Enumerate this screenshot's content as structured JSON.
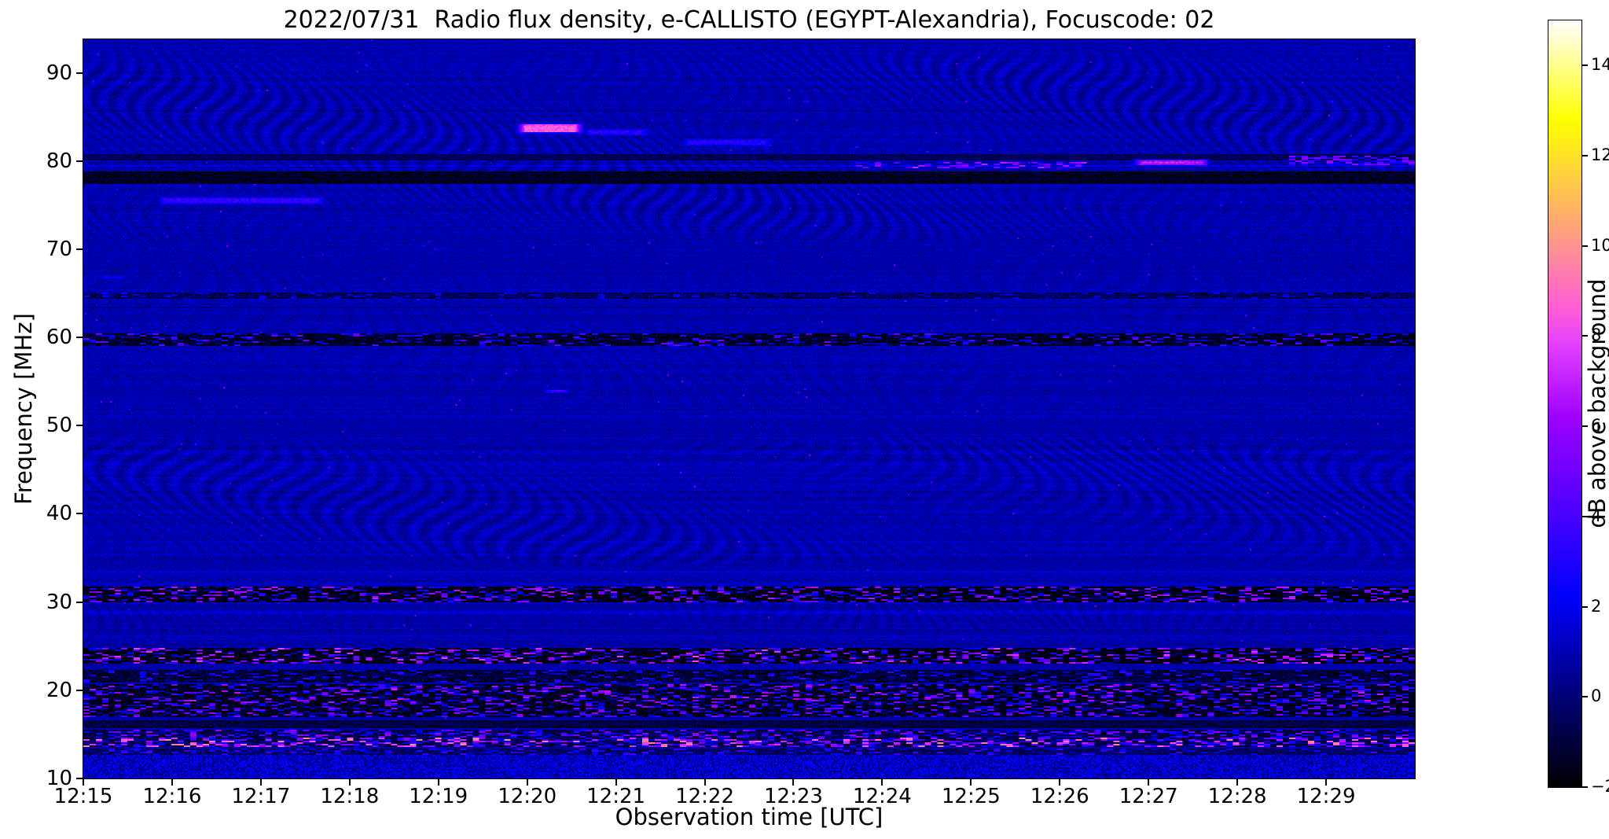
{
  "title": "2022/07/31  Radio flux density, e-CALLISTO (EGYPT-Alexandria), Focuscode: 02",
  "x_axis": {
    "label": "Observation time [UTC]",
    "ticks": [
      "12:15",
      "12:16",
      "12:17",
      "12:18",
      "12:19",
      "12:20",
      "12:21",
      "12:22",
      "12:23",
      "12:24",
      "12:25",
      "12:26",
      "12:27",
      "12:28",
      "12:29"
    ]
  },
  "y_axis": {
    "label": "Frequency [MHz]",
    "ticks": [
      "90",
      "80",
      "70",
      "60",
      "50",
      "40",
      "30",
      "20",
      "10"
    ]
  },
  "colorbar": {
    "label": "dB above background",
    "ticks": [
      "−2",
      "0",
      "2",
      "4",
      "6",
      "8",
      "10",
      "12",
      "14"
    ],
    "tick_values": [
      -2,
      0,
      2,
      4,
      6,
      8,
      10,
      12,
      14
    ],
    "min_db": -2,
    "max_db": 15
  },
  "chart_data": {
    "type": "heatmap",
    "title": "2022/07/31  Radio flux density, e-CALLISTO (EGYPT-Alexandria), Focuscode: 02",
    "xlabel": "Observation time [UTC]",
    "ylabel": "Frequency [MHz]",
    "x_start_utc": "12:15",
    "x_end_utc": "12:30",
    "x_minutes": 15,
    "x_tick_minutes": [
      0,
      1,
      2,
      3,
      4,
      5,
      6,
      7,
      8,
      9,
      10,
      11,
      12,
      13,
      14
    ],
    "freq_min_mhz": 10,
    "freq_max_mhz": 93.8,
    "y_tick_values_mhz": [
      90,
      80,
      70,
      60,
      50,
      40,
      30,
      20,
      10
    ],
    "db_min": -2,
    "db_max": 15,
    "colorbar_tick_values_db": [
      -2,
      0,
      2,
      4,
      6,
      8,
      10,
      12,
      14
    ],
    "background_db": 0.9,
    "colormap": "gnuplot2 (black-blue-magenta-yellow-white)",
    "grid": false,
    "ripple_zones": [
      {
        "f0": 70,
        "f1": 93.8,
        "amp": 0.55,
        "kx": 0.6,
        "warp": 9,
        "wx": 0.02,
        "kf": 1.5
      },
      {
        "f0": 33,
        "f1": 50,
        "amp": 0.5,
        "kx": 0.5,
        "warp": 11,
        "wx": 0.016,
        "kf": 1.3
      },
      {
        "f0": 25,
        "f1": 33,
        "amp": 0.3,
        "kx": 0.7,
        "warp": 7,
        "wx": 0.025,
        "kf": 1.7
      },
      {
        "f0": 50,
        "f1": 70,
        "amp": 0.15,
        "kx": 0.45,
        "warp": 8,
        "wx": 0.02,
        "kf": 1.2
      }
    ],
    "features": [
      {
        "kind": "dark-band",
        "name": "rfi-absorption-line-78MHz",
        "f": [
          77.5,
          79.0
        ],
        "t": [
          0,
          15
        ],
        "db": -1.4,
        "jitter": 1.0
      },
      {
        "kind": "dark-band",
        "name": "rfi-absorption-line-80MHz",
        "f": [
          80.1,
          80.8
        ],
        "t": [
          0,
          15
        ],
        "db": -0.5,
        "jitter": 0.8
      },
      {
        "kind": "bright-streak",
        "name": "emission-84MHz-1220",
        "f": [
          83.2,
          84.4
        ],
        "t": [
          4.85,
          5.65
        ],
        "db": 8.5
      },
      {
        "kind": "bright-streak",
        "name": "emission-83MHz-1220-tail",
        "f": [
          82.9,
          83.8
        ],
        "t": [
          5.6,
          6.4
        ],
        "db": 3.2
      },
      {
        "kind": "bright-streak",
        "name": "streak-75MHz-1216",
        "f": [
          75.1,
          76.1
        ],
        "t": [
          0.8,
          2.75
        ],
        "db": 3.4
      },
      {
        "kind": "bright-streak",
        "name": "patch-82MHz-1222",
        "f": [
          81.7,
          82.7
        ],
        "t": [
          6.7,
          7.8
        ],
        "db": 3.0
      },
      {
        "kind": "speckle-streak",
        "name": "dashes-79MHz-1224",
        "f": [
          79.2,
          80.0
        ],
        "t": [
          8.7,
          11.3
        ],
        "p": 0.5,
        "db": [
          2,
          7
        ]
      },
      {
        "kind": "bright-streak",
        "name": "dash-80MHz-1227",
        "f": [
          79.5,
          80.3
        ],
        "t": [
          11.8,
          12.7
        ],
        "db": 7.0
      },
      {
        "kind": "speckle-streak",
        "name": "dashes-80MHz-1228",
        "f": [
          79.7,
          80.7
        ],
        "t": [
          13.5,
          15
        ],
        "p": 0.55,
        "db": [
          2,
          6
        ]
      },
      {
        "kind": "bright-streak",
        "name": "dash-54MHz-1220",
        "f": [
          53.7,
          54.3
        ],
        "t": [
          5.15,
          5.5
        ],
        "db": 4.0
      },
      {
        "kind": "bright-streak",
        "name": "dash-67MHz-1215",
        "f": [
          66.7,
          67.2
        ],
        "t": [
          0.15,
          0.5
        ],
        "db": 3.0
      },
      {
        "kind": "speckle-band",
        "name": "rfi-band-60MHz",
        "f": [
          59.2,
          60.5
        ],
        "t": [
          0,
          15
        ],
        "p": 0.42,
        "db": [
          -2,
          5
        ],
        "dark": -1.3
      },
      {
        "kind": "speckle-band",
        "name": "rfi-band-65MHz",
        "f": [
          64.4,
          65.1
        ],
        "t": [
          0,
          15
        ],
        "p": 0.3,
        "db": [
          -1.5,
          2.5
        ],
        "dark": -0.4
      },
      {
        "kind": "speckle-band",
        "name": "rfi-band-31MHz",
        "f": [
          30.1,
          31.8
        ],
        "t": [
          0,
          15
        ],
        "p": 0.45,
        "db": [
          -2,
          7
        ],
        "dark": -1.7
      },
      {
        "kind": "speckle-band",
        "name": "rfi-band-24MHz",
        "f": [
          23.1,
          24.8
        ],
        "t": [
          0,
          15
        ],
        "p": 0.5,
        "db": [
          -2,
          8
        ],
        "dark": -1.7
      },
      {
        "kind": "speckle-band",
        "name": "rfi-band-21MHz",
        "f": [
          20.9,
          22.4
        ],
        "t": [
          0,
          15
        ],
        "p": 0.35,
        "db": [
          -2,
          4
        ],
        "dark": -1.0
      },
      {
        "kind": "speckle-band",
        "name": "rfi-band-19MHz",
        "f": [
          18.7,
          20.8
        ],
        "t": [
          0,
          15
        ],
        "p": 0.5,
        "db": [
          -2,
          7
        ],
        "dark": -1.4
      },
      {
        "kind": "speckle-band",
        "name": "rfi-band-17MHz",
        "f": [
          17.1,
          18.6
        ],
        "t": [
          0,
          15
        ],
        "p": 0.5,
        "db": [
          -2,
          6
        ],
        "dark": -1.4
      },
      {
        "kind": "dark-band",
        "name": "dark-band-16MHz",
        "f": [
          15.8,
          16.7
        ],
        "t": [
          0,
          15
        ],
        "db": -0.8,
        "jitter": 1.2
      },
      {
        "kind": "speckle-band",
        "name": "rfi-band-15MHz",
        "f": [
          14.8,
          15.7
        ],
        "t": [
          0,
          15
        ],
        "p": 0.55,
        "db": [
          -1,
          6
        ],
        "dark": -0.8
      },
      {
        "kind": "speckle-band",
        "name": "rfi-band-14MHz-bright",
        "f": [
          13.6,
          14.7
        ],
        "t": [
          0,
          15
        ],
        "p": 0.6,
        "db": [
          0,
          10
        ],
        "dark": -0.8
      },
      {
        "kind": "speckle-band",
        "name": "rfi-band-13MHz",
        "f": [
          12.8,
          13.5
        ],
        "t": [
          0,
          15
        ],
        "p": 0.4,
        "db": [
          -1,
          4
        ],
        "dark": -0.3
      },
      {
        "kind": "noise",
        "name": "noise-floor-10-13MHz",
        "f": [
          10,
          12.8
        ],
        "t": [
          0,
          15
        ],
        "base": 1.3,
        "amp": 1.3
      }
    ]
  }
}
